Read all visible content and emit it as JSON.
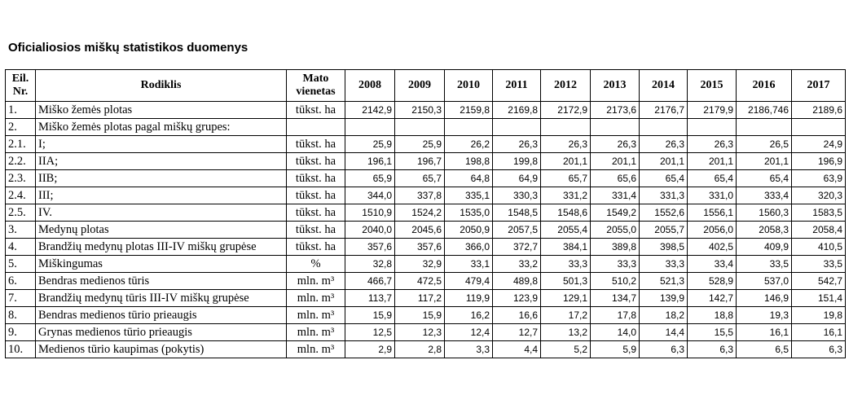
{
  "title": "Oficialiosios miškų statistikos duomenys",
  "header": {
    "nr": "Eil. Nr.",
    "indicator": "Rodiklis",
    "unit": "Mato vienetas",
    "years": [
      "2008",
      "2009",
      "2010",
      "2011",
      "2012",
      "2013",
      "2014",
      "2015",
      "2016",
      "2017"
    ]
  },
  "rows": [
    {
      "nr": "1.",
      "name": "Miško žemės plotas",
      "unit": "tūkst. ha",
      "values": [
        "2142,9",
        "2150,3",
        "2159,8",
        "2169,8",
        "2172,9",
        "2173,6",
        "2176,7",
        "2179,9",
        "2186,746",
        "2189,6"
      ]
    },
    {
      "nr": "2.",
      "name": "Miško žemės plotas pagal miškų grupes:",
      "unit": "",
      "values": [
        "",
        "",
        "",
        "",
        "",
        "",
        "",
        "",
        "",
        ""
      ]
    },
    {
      "nr": "2.1.",
      "name": "I;",
      "unit": "tūkst. ha",
      "values": [
        "25,9",
        "25,9",
        "26,2",
        "26,3",
        "26,3",
        "26,3",
        "26,3",
        "26,3",
        "26,5",
        "24,9"
      ]
    },
    {
      "nr": "2.2.",
      "name": "IIA;",
      "unit": "tūkst. ha",
      "values": [
        "196,1",
        "196,7",
        "198,8",
        "199,8",
        "201,1",
        "201,1",
        "201,1",
        "201,1",
        "201,1",
        "196,9"
      ]
    },
    {
      "nr": "2.3.",
      "name": "IIB;",
      "unit": "tūkst. ha",
      "values": [
        "65,9",
        "65,7",
        "64,8",
        "64,9",
        "65,7",
        "65,6",
        "65,4",
        "65,4",
        "65,4",
        "63,9"
      ]
    },
    {
      "nr": "2.4.",
      "name": "III;",
      "unit": "tūkst. ha",
      "values": [
        "344,0",
        "337,8",
        "335,1",
        "330,3",
        "331,2",
        "331,4",
        "331,3",
        "331,0",
        "333,4",
        "320,3"
      ]
    },
    {
      "nr": "2.5.",
      "name": "IV.",
      "unit": "tūkst. ha",
      "values": [
        "1510,9",
        "1524,2",
        "1535,0",
        "1548,5",
        "1548,6",
        "1549,2",
        "1552,6",
        "1556,1",
        "1560,3",
        "1583,5"
      ]
    },
    {
      "nr": "3.",
      "name": "Medynų plotas",
      "unit": "tūkst. ha",
      "values": [
        "2040,0",
        "2045,6",
        "2050,9",
        "2057,5",
        "2055,4",
        "2055,0",
        "2055,7",
        "2056,0",
        "2058,3",
        "2058,4"
      ]
    },
    {
      "nr": "4.",
      "name": "Brandžių medynų plotas III-IV miškų grupėse",
      "unit": "tūkst. ha",
      "values": [
        "357,6",
        "357,6",
        "366,0",
        "372,7",
        "384,1",
        "389,8",
        "398,5",
        "402,5",
        "409,9",
        "410,5"
      ]
    },
    {
      "nr": "5.",
      "name": "Miškingumas",
      "unit": "%",
      "values": [
        "32,8",
        "32,9",
        "33,1",
        "33,2",
        "33,3",
        "33,3",
        "33,3",
        "33,4",
        "33,5",
        "33,5"
      ]
    },
    {
      "nr": "6.",
      "name": "Bendras medienos tūris",
      "unit": "mln. m³",
      "values": [
        "466,7",
        "472,5",
        "479,4",
        "489,8",
        "501,3",
        "510,2",
        "521,3",
        "528,9",
        "537,0",
        "542,7"
      ]
    },
    {
      "nr": "7.",
      "name": "Brandžių medynų tūris III-IV miškų grupėse",
      "unit": "mln. m³",
      "values": [
        "113,7",
        "117,2",
        "119,9",
        "123,9",
        "129,1",
        "134,7",
        "139,9",
        "142,7",
        "146,9",
        "151,4"
      ]
    },
    {
      "nr": "8.",
      "name": "Bendras medienos tūrio prieaugis",
      "unit": "mln. m³",
      "values": [
        "15,9",
        "15,9",
        "16,2",
        "16,6",
        "17,2",
        "17,8",
        "18,2",
        "18,8",
        "19,3",
        "19,8"
      ]
    },
    {
      "nr": "9.",
      "name": "Grynas medienos tūrio prieaugis",
      "unit": "mln. m³",
      "values": [
        "12,5",
        "12,3",
        "12,4",
        "12,7",
        "13,2",
        "14,0",
        "14,4",
        "15,5",
        "16,1",
        "16,1"
      ]
    },
    {
      "nr": "10.",
      "name": "Medienos tūrio kaupimas (pokytis)",
      "unit": "mln. m³",
      "values": [
        "2,9",
        "2,8",
        "3,3",
        "4,4",
        "5,2",
        "5,9",
        "6,3",
        "6,3",
        "6,5",
        "6,3"
      ]
    }
  ]
}
